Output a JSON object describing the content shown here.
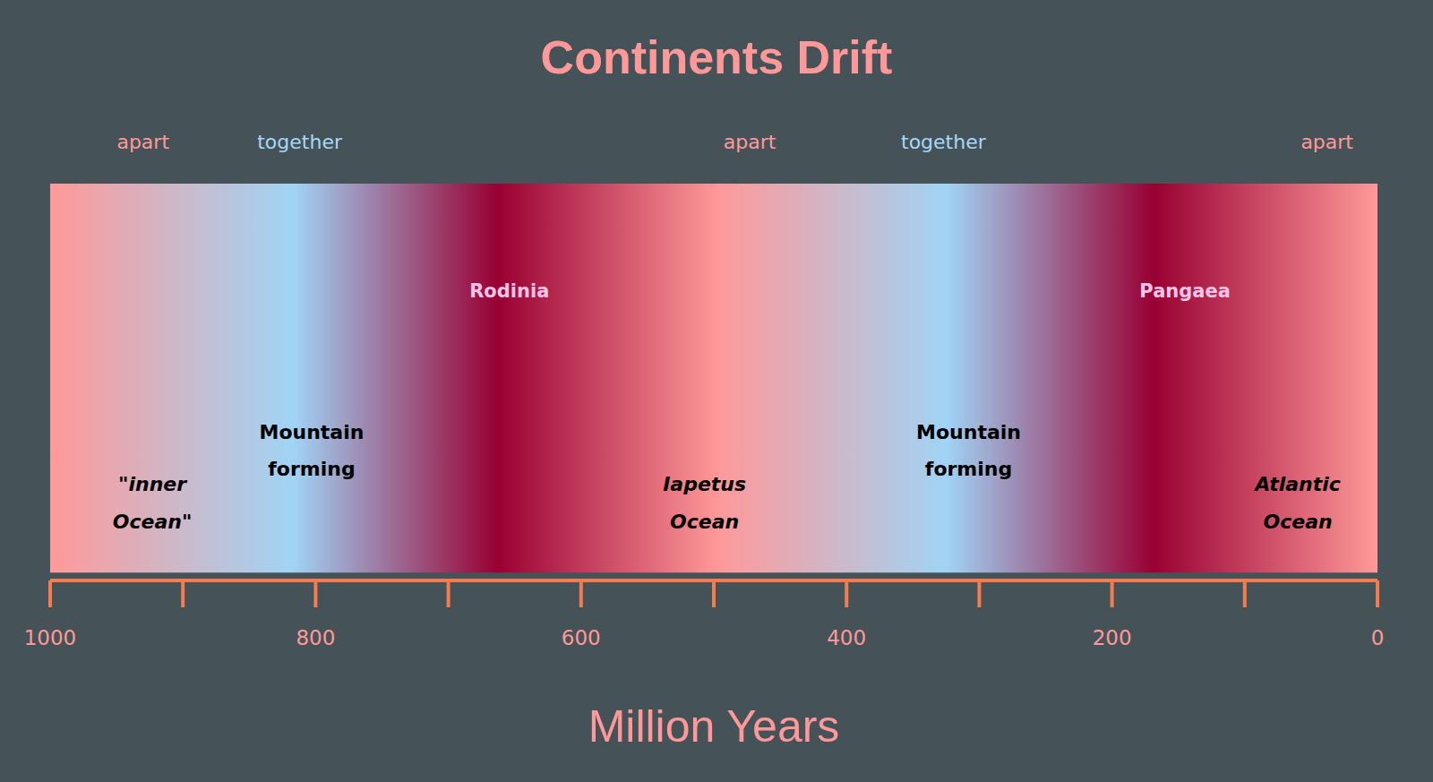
{
  "chart_data": {
    "type": "timeline",
    "title": "Continents Drift",
    "xlabel": "Million Years",
    "xlim": [
      1000,
      0
    ],
    "xticks": [
      1000,
      800,
      600,
      400,
      200,
      0
    ],
    "minor_xticks": [
      900,
      700,
      500,
      300,
      100
    ],
    "color_stops": [
      {
        "value": 1000,
        "color": "#ff9999"
      },
      {
        "value": 817,
        "color": "#a0d4f5"
      },
      {
        "value": 663,
        "color": "#990033"
      },
      {
        "value": 497,
        "color": "#ff9999"
      },
      {
        "value": 325,
        "color": "#a0d4f5"
      },
      {
        "value": 169,
        "color": "#990033"
      },
      {
        "value": 0,
        "color": "#ff9999"
      }
    ],
    "phases": [
      {
        "x": 930,
        "label": "apart",
        "color": "#ff9999"
      },
      {
        "x": 812,
        "label": "together",
        "color": "#a8d8f8"
      },
      {
        "x": 473,
        "label": "apart",
        "color": "#ff9999"
      },
      {
        "x": 327,
        "label": "together",
        "color": "#a8d8f8"
      },
      {
        "x": 38,
        "label": "apart",
        "color": "#ff9999"
      }
    ],
    "supercontinents": [
      {
        "x": 654,
        "label": "Rodinia"
      },
      {
        "x": 145,
        "label": "Pangaea"
      }
    ],
    "events": [
      {
        "x": 803,
        "label": "Mountain forming"
      },
      {
        "x": 308,
        "label": "Mountain forming"
      }
    ],
    "oceans": [
      {
        "x": 923,
        "label": "\"inner Ocean\""
      },
      {
        "x": 507,
        "label": "Iapetus Ocean"
      },
      {
        "x": 60,
        "label": "Atlantic Ocean"
      }
    ]
  }
}
